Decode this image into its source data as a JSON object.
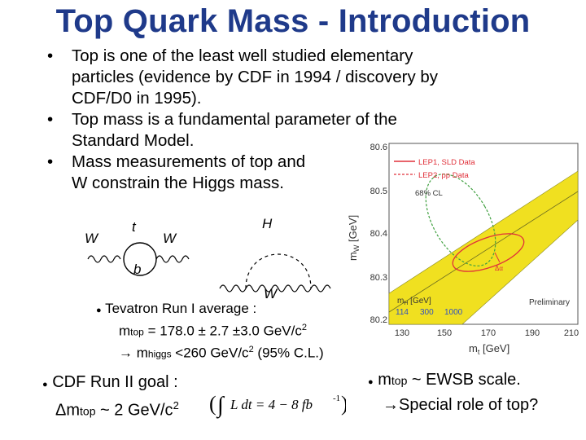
{
  "title": "Top Quark Mass - Introduction",
  "bullets": [
    {
      "line1": "Top is one of the least well studied elementary",
      "line2": "particles (evidence by CDF in 1994 / discovery by",
      "line3": "CDF/D0 in 1995)."
    },
    {
      "line1": "Top mass is a fundamental parameter of the",
      "line2": "Standard Model."
    },
    {
      "line1": "Mass measurements of top and",
      "line2": "W constrain the Higgs mass."
    }
  ],
  "feynman": {
    "w_left": "W",
    "t": "t",
    "w_right": "W",
    "b": "b",
    "h": "H",
    "w_bottom": "W"
  },
  "tevatron": {
    "bullet": "●",
    "line1": "Tevatron Run I average :",
    "m": "m",
    "top": "top",
    "value": " = 178.0 ± 2.7 ±3.0 GeV/c",
    "sup": "2",
    "arrow": "→ m",
    "higgs": "higgs",
    "higgs_value": " <260 GeV/c",
    "higgs_sup": "2",
    "cl": " (95% C.L.)"
  },
  "cdf": {
    "bullet": "●",
    "line1": "CDF Run II goal :",
    "delta": "Δm",
    "top": "top",
    "value": " ~ 2 GeV/c",
    "sup": "2",
    "lumi": "L dt = 4 − 8 fb",
    "lumi_sup": "-1"
  },
  "ewsb": {
    "bullet": "●",
    "m": "m",
    "top": "top",
    "line1": " ~ EWSB scale.",
    "line2": "→Special role of top?"
  },
  "plot": {
    "xlabel": "m",
    "xlabel_sub": "t",
    "xlabel_unit": " [GeV]",
    "ylabel": "m",
    "ylabel_sub": "W",
    "ylabel_unit": " [GeV]",
    "x_ticks": [
      "130",
      "150",
      "170",
      "190",
      "210"
    ],
    "y_ticks": [
      "80.6",
      "80.5",
      "80.4",
      "80.3",
      "80.2"
    ],
    "legend": [
      "LEP1, SLD Data",
      "LEP2, pp Data"
    ],
    "cl": "68% CL",
    "delta_alpha": "Δα",
    "mh_label": "m",
    "mh_sub": "H",
    "mh_unit": " [GeV]",
    "mh_values": [
      "114",
      "300",
      "1000"
    ],
    "preliminary": "Preliminary",
    "colors": {
      "band": "#f0e020",
      "red": "#e0303a",
      "green": "#40a040",
      "axis": "#555555"
    }
  }
}
